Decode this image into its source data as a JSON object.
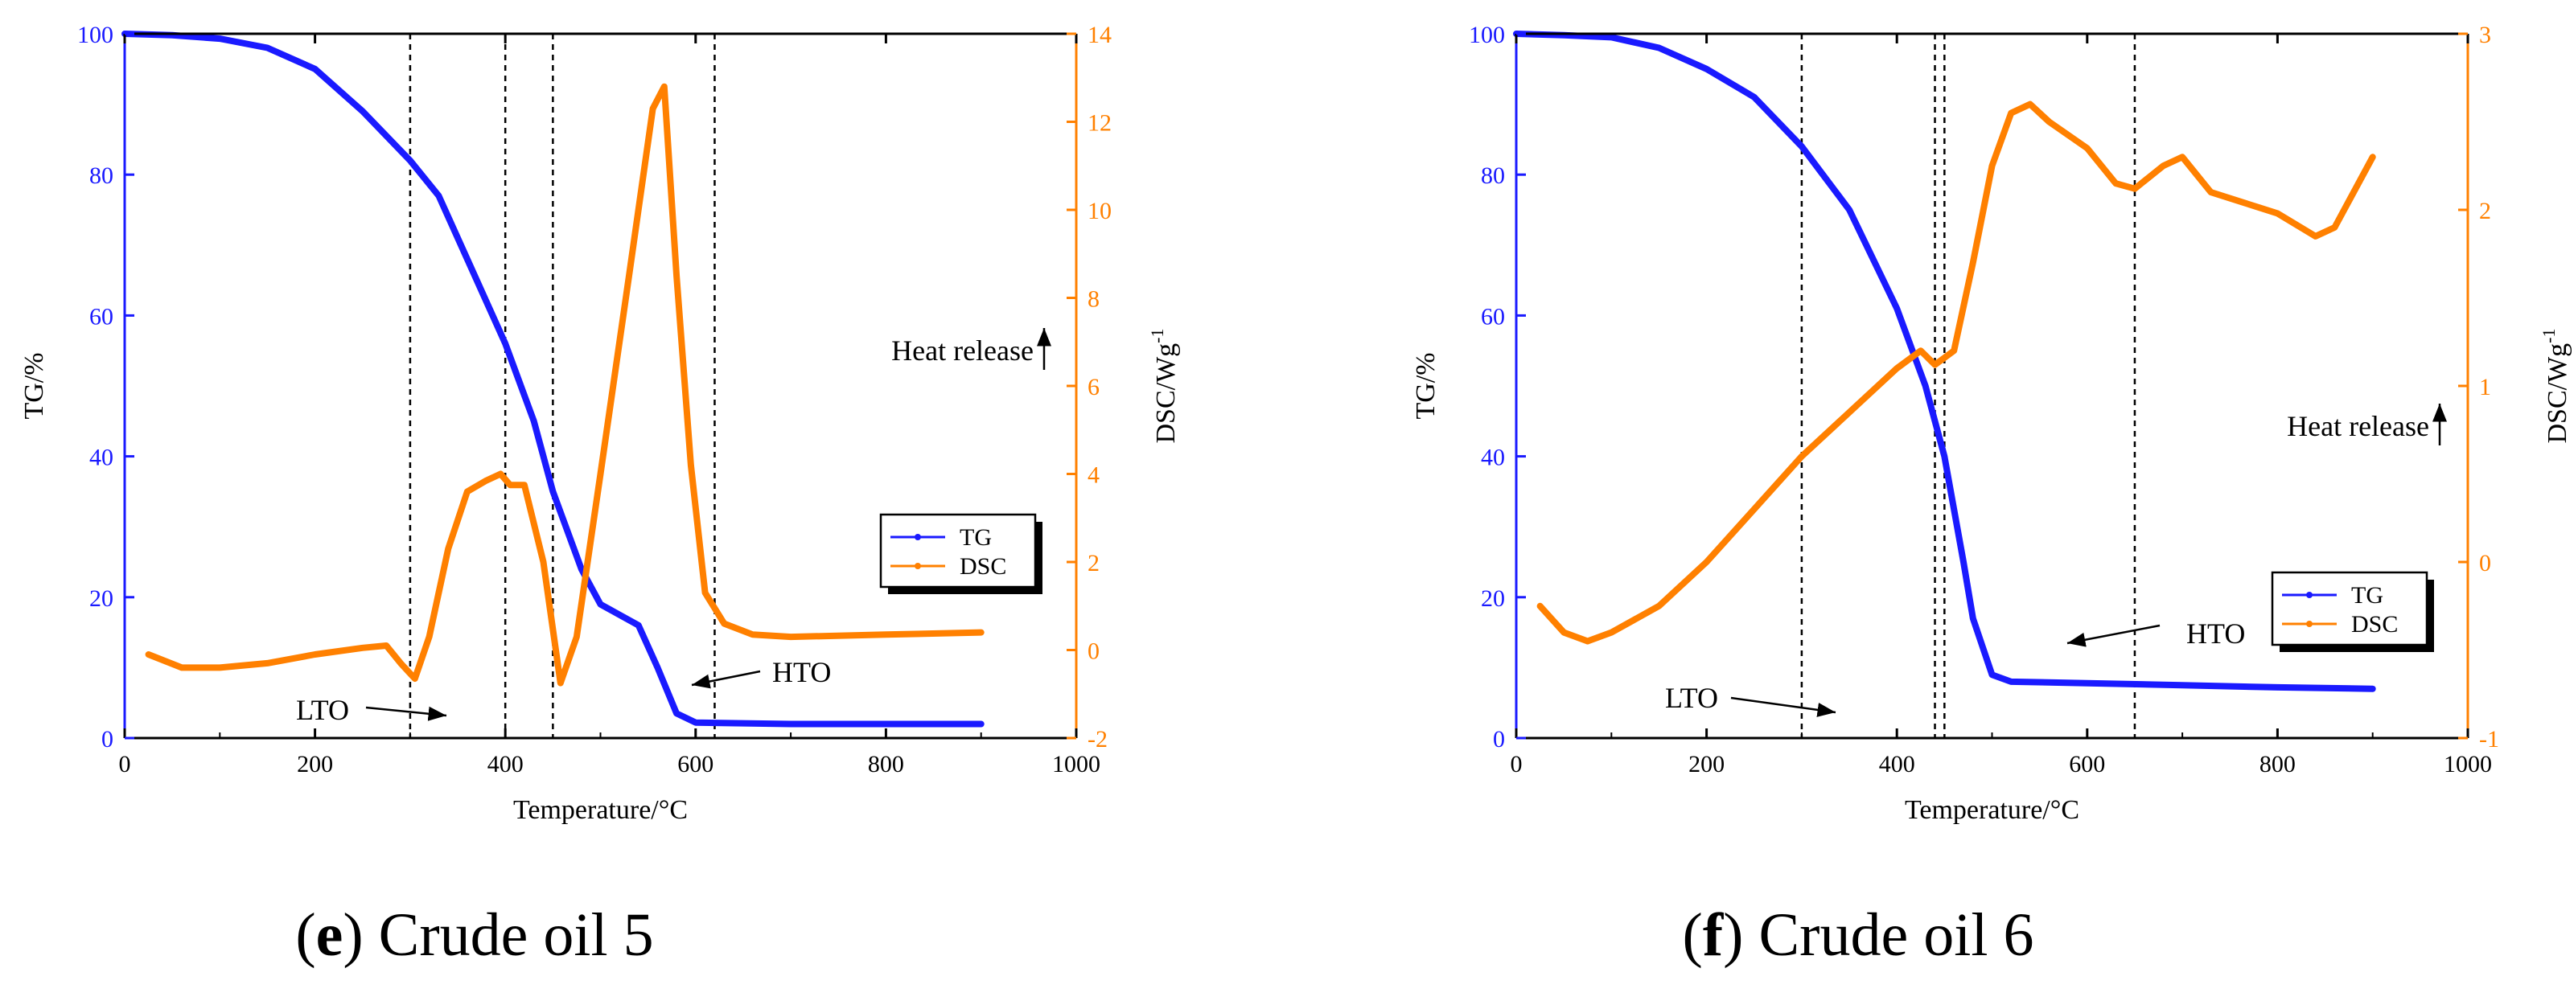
{
  "colors": {
    "tg": "#1a1aff",
    "dsc": "#ff8000",
    "axis": "#000000"
  },
  "chart_data": [
    {
      "type": "line",
      "caption_letter": "e",
      "caption_text": ") Crude oil 5",
      "caption_open": "(",
      "xlabel": "Temperature/°C",
      "ylabel_left": "TG/%",
      "ylabel_right": "DSC/Wg",
      "ylabel_right_sup": "-1",
      "xlim": [
        0,
        1000
      ],
      "ylim_left": [
        0,
        100
      ],
      "ylim_right": [
        -2,
        14
      ],
      "x_ticks": [
        "0",
        "200",
        "400",
        "600",
        "800",
        "1000"
      ],
      "yl_ticks": [
        "0",
        "20",
        "40",
        "60",
        "80",
        "100"
      ],
      "yr_ticks": [
        "-2",
        "0",
        "2",
        "4",
        "6",
        "8",
        "10",
        "12",
        "14"
      ],
      "vlines": [
        300,
        400,
        450,
        620
      ],
      "annotations": {
        "heat_release": "Heat release",
        "lto": "LTO",
        "hto": "HTO"
      },
      "legend": [
        "TG",
        "DSC"
      ],
      "series": [
        {
          "name": "TG",
          "axis": "left",
          "x": [
            0,
            50,
            100,
            150,
            200,
            250,
            300,
            330,
            360,
            400,
            430,
            450,
            480,
            500,
            540,
            560,
            580,
            600,
            700,
            800,
            900
          ],
          "y": [
            100,
            99.8,
            99.3,
            98,
            95,
            89,
            82,
            77,
            68,
            56,
            45,
            35,
            24,
            19,
            16,
            10,
            3.5,
            2.2,
            2,
            2,
            2
          ]
        },
        {
          "name": "DSC",
          "axis": "right",
          "x": [
            25,
            60,
            100,
            150,
            200,
            250,
            275,
            290,
            305,
            320,
            340,
            360,
            380,
            395,
            405,
            420,
            440,
            458,
            475,
            500,
            530,
            555,
            567,
            580,
            595,
            610,
            630,
            660,
            700,
            800,
            900
          ],
          "y": [
            -0.1,
            -0.4,
            -0.4,
            -0.3,
            -0.1,
            0.05,
            0.1,
            -0.3,
            -0.65,
            0.3,
            2.3,
            3.6,
            3.85,
            4.0,
            3.75,
            3.75,
            2.0,
            -0.75,
            0.3,
            4.0,
            8.5,
            12.3,
            12.8,
            8.5,
            4.2,
            1.3,
            0.6,
            0.35,
            0.3,
            0.35,
            0.4
          ]
        }
      ]
    },
    {
      "type": "line",
      "caption_letter": "f",
      "caption_text": ") Crude oil 6",
      "caption_open": "(",
      "xlabel": "Temperature/°C",
      "ylabel_left": "TG/%",
      "ylabel_right": "DSC/Wg",
      "ylabel_right_sup": "-1",
      "xlim": [
        0,
        1000
      ],
      "ylim_left": [
        0,
        100
      ],
      "ylim_right": [
        -1,
        3
      ],
      "x_ticks": [
        "0",
        "200",
        "400",
        "600",
        "800",
        "1000"
      ],
      "yl_ticks": [
        "0",
        "20",
        "40",
        "60",
        "80",
        "100"
      ],
      "yr_ticks": [
        "-1",
        "0",
        "1",
        "2",
        "3"
      ],
      "vlines": [
        300,
        440,
        450,
        650
      ],
      "annotations": {
        "heat_release": "Heat release",
        "lto": "LTO",
        "hto": "HTO"
      },
      "legend": [
        "TG",
        "DSC"
      ],
      "series": [
        {
          "name": "TG",
          "axis": "left",
          "x": [
            0,
            50,
            100,
            150,
            200,
            250,
            300,
            350,
            400,
            430,
            450,
            470,
            480,
            500,
            520,
            600,
            700,
            800,
            900
          ],
          "y": [
            100,
            99.8,
            99.5,
            98,
            95,
            91,
            84,
            75,
            61,
            50,
            40,
            25,
            17,
            9,
            8,
            7.8,
            7.5,
            7.2,
            7
          ]
        },
        {
          "name": "DSC",
          "axis": "right",
          "x": [
            25,
            50,
            75,
            100,
            150,
            200,
            250,
            300,
            350,
            400,
            425,
            440,
            460,
            480,
            500,
            520,
            540,
            560,
            600,
            630,
            650,
            680,
            700,
            730,
            800,
            840,
            860,
            900
          ],
          "y": [
            -0.25,
            -0.4,
            -0.45,
            -0.4,
            -0.25,
            0.0,
            0.3,
            0.6,
            0.85,
            1.1,
            1.2,
            1.12,
            1.2,
            1.7,
            2.25,
            2.55,
            2.6,
            2.5,
            2.35,
            2.15,
            2.12,
            2.25,
            2.3,
            2.1,
            1.98,
            1.85,
            1.9,
            2.3
          ]
        }
      ]
    }
  ]
}
